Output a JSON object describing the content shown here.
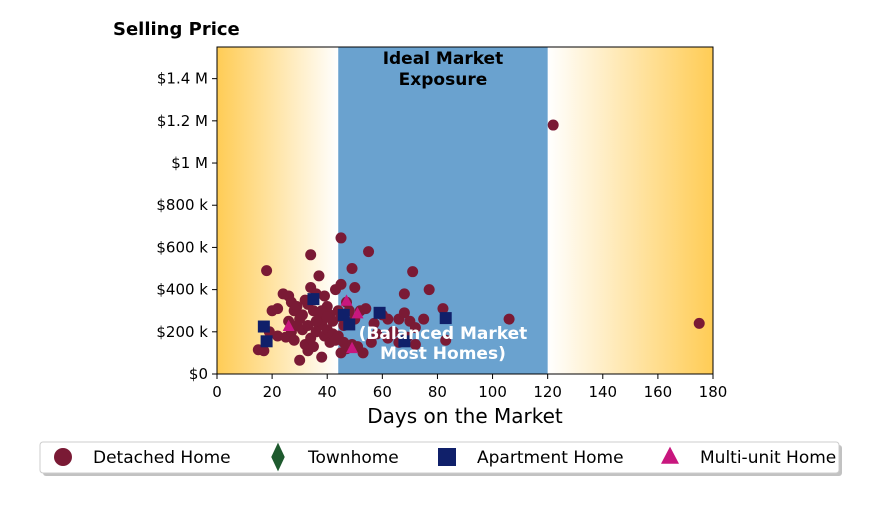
{
  "chart_data": {
    "type": "scatter",
    "title": "",
    "ylabel": "Selling Price",
    "xlabel": "Days on the Market",
    "xlim": [
      0,
      180
    ],
    "ylim": [
      0,
      1550000
    ],
    "x_ticks": [
      0,
      20,
      40,
      60,
      80,
      100,
      120,
      140,
      160,
      180
    ],
    "y_ticks": [
      {
        "value": 0,
        "label": "$0"
      },
      {
        "value": 200000,
        "label": "$200 k"
      },
      {
        "value": 400000,
        "label": "$400 k"
      },
      {
        "value": 600000,
        "label": "$600 k"
      },
      {
        "value": 800000,
        "label": "$800 k"
      },
      {
        "value": 1000000,
        "label": "$1 M"
      },
      {
        "value": 1200000,
        "label": "$1.2 M"
      },
      {
        "value": 1400000,
        "label": "$1.4 M"
      }
    ],
    "grid": false,
    "legend_position": "bottom",
    "band": {
      "x_start": 44,
      "x_end": 120,
      "color": "#6aa2cf",
      "title_lines": [
        "Ideal Market",
        "Exposure"
      ],
      "subtitle_lines": [
        "(Balanced Market",
        "Most Homes)"
      ]
    },
    "series": [
      {
        "name": "Detached Home",
        "marker": "circle",
        "color": "#7a1a35",
        "points": [
          [
            18,
            490000
          ],
          [
            34,
            565000
          ],
          [
            45,
            645000
          ],
          [
            49,
            500000
          ],
          [
            55,
            580000
          ],
          [
            71,
            485000
          ],
          [
            77,
            400000
          ],
          [
            68,
            380000
          ],
          [
            37,
            465000
          ],
          [
            45,
            425000
          ],
          [
            50,
            410000
          ],
          [
            20,
            300000
          ],
          [
            22,
            310000
          ],
          [
            24,
            380000
          ],
          [
            26,
            370000
          ],
          [
            27,
            340000
          ],
          [
            28,
            300000
          ],
          [
            29,
            320000
          ],
          [
            30,
            260000
          ],
          [
            31,
            280000
          ],
          [
            32,
            350000
          ],
          [
            33,
            330000
          ],
          [
            34,
            410000
          ],
          [
            35,
            300000
          ],
          [
            36,
            380000
          ],
          [
            37,
            260000
          ],
          [
            38,
            240000
          ],
          [
            39,
            370000
          ],
          [
            40,
            320000
          ],
          [
            41,
            280000
          ],
          [
            42,
            250000
          ],
          [
            43,
            400000
          ],
          [
            44,
            300000
          ],
          [
            45,
            270000
          ],
          [
            46,
            230000
          ],
          [
            47,
            340000
          ],
          [
            48,
            300000
          ],
          [
            50,
            260000
          ],
          [
            52,
            300000
          ],
          [
            54,
            310000
          ],
          [
            57,
            240000
          ],
          [
            60,
            280000
          ],
          [
            62,
            260000
          ],
          [
            64,
            200000
          ],
          [
            66,
            260000
          ],
          [
            68,
            290000
          ],
          [
            70,
            250000
          ],
          [
            72,
            220000
          ],
          [
            75,
            260000
          ],
          [
            82,
            310000
          ],
          [
            83,
            160000
          ],
          [
            106,
            260000
          ],
          [
            122,
            1180000
          ],
          [
            175,
            240000
          ],
          [
            15,
            115000
          ],
          [
            17,
            110000
          ],
          [
            19,
            200000
          ],
          [
            22,
            180000
          ],
          [
            25,
            175000
          ],
          [
            27,
            200000
          ],
          [
            28,
            160000
          ],
          [
            29,
            230000
          ],
          [
            30,
            65000
          ],
          [
            31,
            210000
          ],
          [
            32,
            140000
          ],
          [
            33,
            110000
          ],
          [
            34,
            170000
          ],
          [
            35,
            130000
          ],
          [
            36,
            200000
          ],
          [
            37,
            230000
          ],
          [
            38,
            80000
          ],
          [
            39,
            180000
          ],
          [
            40,
            210000
          ],
          [
            41,
            150000
          ],
          [
            42,
            190000
          ],
          [
            43,
            160000
          ],
          [
            44,
            180000
          ],
          [
            45,
            100000
          ],
          [
            46,
            150000
          ],
          [
            47,
            120000
          ],
          [
            49,
            140000
          ],
          [
            51,
            130000
          ],
          [
            53,
            100000
          ],
          [
            56,
            150000
          ],
          [
            58,
            190000
          ],
          [
            62,
            170000
          ],
          [
            66,
            150000
          ],
          [
            69,
            175000
          ],
          [
            72,
            140000
          ],
          [
            38,
            300000
          ],
          [
            36,
            250000
          ],
          [
            40,
            270000
          ],
          [
            26,
            250000
          ],
          [
            33,
            230000
          ]
        ]
      },
      {
        "name": "Townhome",
        "marker": "diamond",
        "color": "#1e5a2e",
        "points": []
      },
      {
        "name": "Apartment Home",
        "marker": "square",
        "color": "#10206a",
        "points": [
          [
            17,
            225000
          ],
          [
            18,
            155000
          ],
          [
            35,
            355000
          ],
          [
            46,
            280000
          ],
          [
            48,
            235000
          ],
          [
            59,
            290000
          ],
          [
            68,
            155000
          ],
          [
            83,
            265000
          ]
        ]
      },
      {
        "name": "Multi-unit Home",
        "marker": "triangle",
        "color": "#c8177e",
        "points": [
          [
            26,
            225000
          ],
          [
            47,
            345000
          ],
          [
            51,
            285000
          ],
          [
            49,
            120000
          ]
        ]
      }
    ]
  }
}
